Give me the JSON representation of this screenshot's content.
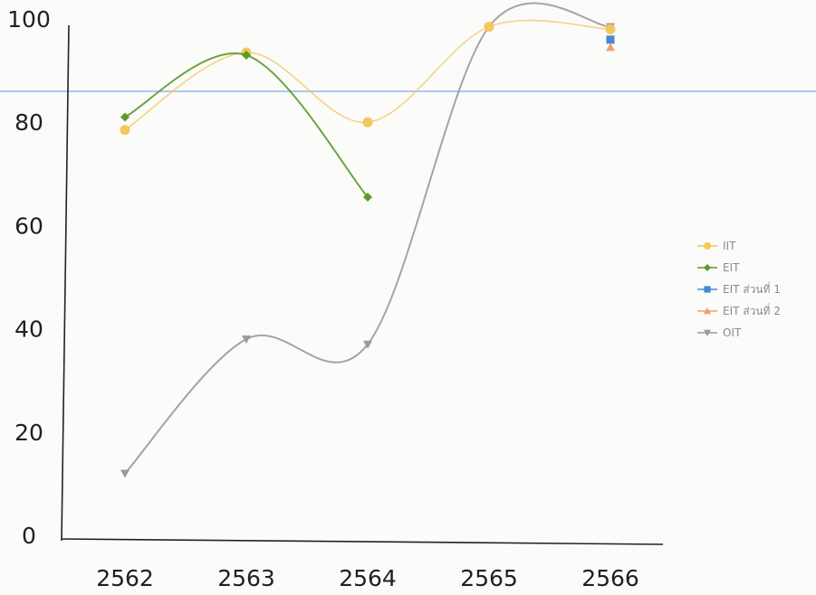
{
  "chart_data": {
    "type": "line",
    "categories": [
      "2562",
      "2563",
      "2564",
      "2565",
      "2566"
    ],
    "ylim": [
      0,
      100
    ],
    "yticks": [
      0,
      20,
      40,
      60,
      80,
      100
    ],
    "grid": false,
    "legend_position": "right",
    "reference_line": {
      "value": 86,
      "color": "#a9c9ef"
    },
    "series": [
      {
        "name": "IIT",
        "color": "#f2c75c",
        "marker": "circle",
        "values": [
          78.5,
          93.5,
          80,
          98.5,
          98
        ]
      },
      {
        "name": "EIT",
        "color": "#5e9a2a",
        "marker": "diamond",
        "values": [
          81,
          93,
          65.5,
          null,
          null
        ]
      },
      {
        "name": "EIT ส่วนที่ 1",
        "color": "#4a86d8",
        "marker": "square",
        "values": [
          null,
          null,
          null,
          null,
          96
        ]
      },
      {
        "name": "EIT ส่วนที่ 2",
        "color": "#f0a070",
        "marker": "triangle",
        "values": [
          null,
          null,
          null,
          null,
          94.5
        ]
      },
      {
        "name": "OIT",
        "color": "#9a9a9a",
        "marker": "triangle-down",
        "values": [
          12,
          38,
          37,
          98.5,
          98.5
        ]
      }
    ]
  }
}
